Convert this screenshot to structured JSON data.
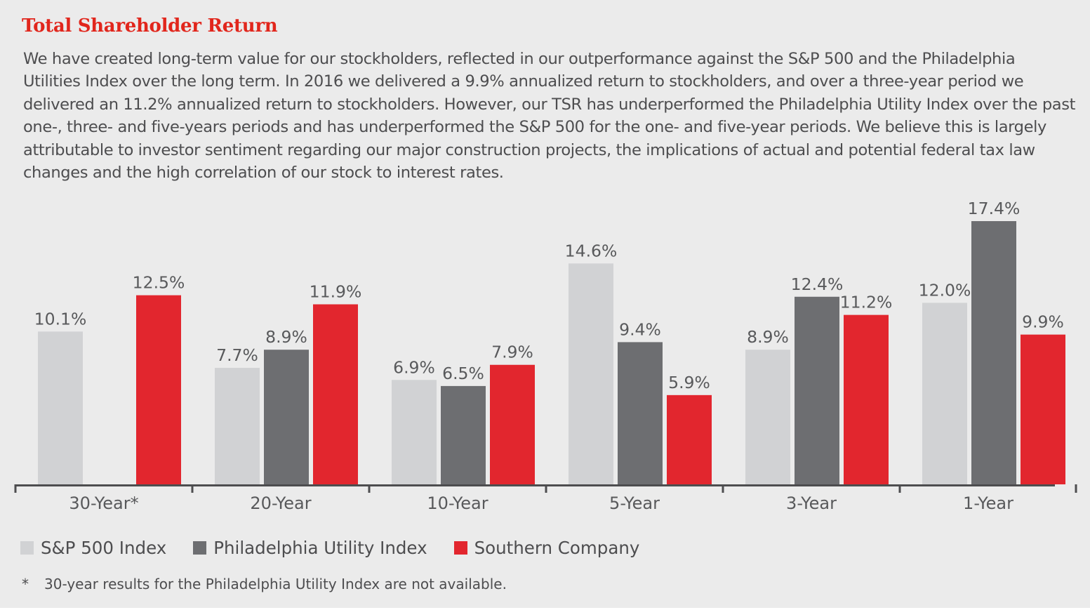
{
  "title": "Total Shareholder Return",
  "intro": "We have created long-term value for our stockholders, reflected in our outperformance against the S&P 500 and the Philadelphia Utilities Index over the long term. In 2016 we delivered a 9.9% annualized return to stockholders, and over a three-year period we delivered an 11.2% annualized return to stockholders. However, our TSR has underperformed the Philadelphia Utility Index over the past one-, three- and five-years periods and has underperformed the S&P 500 for the one- and five-year periods. We believe this is largely attributable to investor sentiment regarding our major construction projects, the implications of actual and potential federal tax law changes and the high correlation of our stock to interest rates.",
  "chart_data": {
    "type": "bar",
    "title": "Total Shareholder Return",
    "categories": [
      "30-Year*",
      "20-Year",
      "10-Year",
      "5-Year",
      "3-Year",
      "1-Year"
    ],
    "series": [
      {
        "name": "S&P 500 Index",
        "color": "#d1d2d4",
        "values": [
          10.1,
          7.7,
          6.9,
          14.6,
          8.9,
          12.0
        ],
        "labels": [
          "10.1%",
          "7.7%",
          "6.9%",
          "14.6%",
          "8.9%",
          "12.0%"
        ]
      },
      {
        "name": "Philadelphia Utility Index",
        "color": "#6d6e71",
        "values": [
          null,
          8.9,
          6.5,
          9.4,
          12.4,
          17.4
        ],
        "labels": [
          null,
          "8.9%",
          "6.5%",
          "9.4%",
          "12.4%",
          "17.4%"
        ]
      },
      {
        "name": "Southern Company",
        "color": "#e2262e",
        "values": [
          12.5,
          11.9,
          7.9,
          5.9,
          11.2,
          9.9
        ],
        "labels": [
          "12.5%",
          "11.9%",
          "7.9%",
          "5.9%",
          "11.2%",
          "9.9%"
        ]
      }
    ],
    "ylim": [
      0,
      17.4
    ],
    "legend": "bottom-left",
    "grid": false,
    "xlabel": "",
    "ylabel": ""
  },
  "footnote": {
    "marker": "*",
    "text": "30-year results for the Philadelphia Utility Index are not available."
  }
}
